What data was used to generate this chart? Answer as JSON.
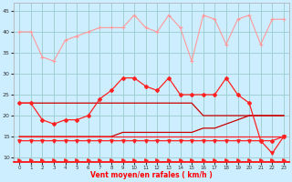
{
  "xlabel": "Vent moyen/en rafales ( km/h )",
  "hours": [
    0,
    1,
    2,
    3,
    4,
    5,
    6,
    7,
    8,
    9,
    10,
    11,
    12,
    13,
    14,
    15,
    16,
    17,
    18,
    19,
    20,
    21,
    22,
    23
  ],
  "bg_color": "#cceeff",
  "grid_color": "#99cccc",
  "color_pink": "#ff9999",
  "color_red": "#ff2222",
  "color_darkred": "#cc0000",
  "wind_gust": [
    40,
    40,
    34,
    33,
    38,
    39,
    40,
    41,
    41,
    41,
    44,
    41,
    40,
    44,
    41,
    33,
    44,
    43,
    37,
    43,
    44,
    37,
    43,
    43
  ],
  "wind_avg": [
    23,
    23,
    19,
    18,
    19,
    19,
    20,
    24,
    26,
    29,
    29,
    27,
    26,
    29,
    25,
    25,
    25,
    25,
    29,
    25,
    23,
    14,
    14,
    15
  ],
  "wind_diag1": [
    23,
    23,
    23,
    23,
    23,
    23,
    23,
    23,
    23,
    23,
    23,
    23,
    23,
    23,
    23,
    23,
    20,
    20,
    20,
    20,
    20,
    20,
    20,
    20
  ],
  "wind_diag2": [
    15,
    15,
    15,
    15,
    15,
    15,
    15,
    15,
    15,
    16,
    16,
    16,
    16,
    16,
    16,
    16,
    17,
    17,
    18,
    19,
    20,
    20,
    20,
    20
  ],
  "wind_flat1": [
    15,
    15,
    15,
    15,
    15,
    15,
    15,
    15,
    15,
    15,
    15,
    15,
    15,
    15,
    15,
    15,
    15,
    15,
    15,
    15,
    15,
    15,
    15,
    15
  ],
  "wind_flat2": [
    14,
    14,
    14,
    14,
    14,
    14,
    14,
    14,
    14,
    14,
    14,
    14,
    14,
    14,
    14,
    14,
    14,
    14,
    14,
    14,
    14,
    14,
    11,
    15
  ],
  "ylim": [
    9,
    47
  ],
  "yticks": [
    10,
    15,
    20,
    25,
    30,
    35,
    40,
    45
  ]
}
